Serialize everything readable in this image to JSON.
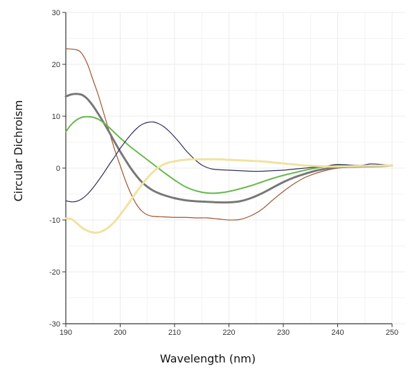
{
  "chart_data": {
    "type": "line",
    "title": "",
    "xlabel": "Wavelength (nm)",
    "ylabel": "Circular Dichroism",
    "xlim": [
      190,
      250
    ],
    "ylim": [
      -30,
      30
    ],
    "x_ticks": [
      190,
      200,
      210,
      220,
      230,
      240,
      250
    ],
    "y_ticks": [
      -30,
      -20,
      -10,
      0,
      10,
      20,
      30
    ],
    "grid": true,
    "legend": "none",
    "series": [
      {
        "color": "#a0522d",
        "width": 1.2,
        "x": [
          190,
          192,
          193,
          194,
          195,
          196,
          197,
          198,
          199,
          200,
          201,
          202,
          203,
          204,
          205,
          206,
          208,
          210,
          212,
          214,
          216,
          218,
          220,
          222,
          224,
          226,
          228,
          230,
          232,
          234,
          236,
          238,
          240,
          244,
          248,
          250
        ],
        "y": [
          23,
          22.8,
          22,
          20,
          17,
          14,
          10.5,
          7,
          3.5,
          0.5,
          -2.5,
          -5,
          -7,
          -8.3,
          -9,
          -9.3,
          -9.4,
          -9.5,
          -9.5,
          -9.6,
          -9.6,
          -9.8,
          -10,
          -9.9,
          -9.2,
          -8,
          -6.2,
          -4.5,
          -3,
          -1.8,
          -1,
          -0.4,
          0,
          0.3,
          0.5,
          0.6
        ]
      },
      {
        "color": "#777777",
        "width": 3,
        "x": [
          190,
          191,
          192,
          193,
          194,
          195,
          196,
          197,
          198,
          199,
          200,
          201,
          202,
          203,
          204,
          205,
          206,
          207,
          208,
          210,
          212,
          214,
          216,
          218,
          220,
          222,
          224,
          226,
          228,
          230,
          232,
          234,
          236,
          238,
          240,
          244,
          248,
          250
        ],
        "y": [
          13.8,
          14.2,
          14.3,
          14.1,
          13.3,
          12,
          10.4,
          8.7,
          6.9,
          5,
          3.2,
          1.5,
          -0.1,
          -1.5,
          -2.7,
          -3.6,
          -4.3,
          -4.8,
          -5.2,
          -5.8,
          -6.2,
          -6.4,
          -6.5,
          -6.6,
          -6.6,
          -6.4,
          -5.8,
          -4.9,
          -3.8,
          -2.7,
          -1.8,
          -1.1,
          -0.5,
          -0.1,
          0.2,
          0.3,
          0.4,
          0.5
        ]
      },
      {
        "color": "#66b84a",
        "width": 2,
        "x": [
          190,
          191,
          192,
          193,
          194,
          195,
          196,
          197,
          198,
          199,
          200,
          201,
          202,
          203,
          204,
          205,
          206,
          207,
          208,
          210,
          212,
          214,
          216,
          218,
          220,
          222,
          224,
          226,
          228,
          230,
          232,
          234,
          236,
          238,
          240,
          244,
          248,
          250
        ],
        "y": [
          7,
          8.4,
          9.3,
          9.8,
          9.9,
          9.8,
          9.4,
          8.7,
          7.8,
          6.8,
          5.8,
          4.9,
          4,
          3.2,
          2.4,
          1.6,
          0.8,
          0,
          -0.8,
          -2.3,
          -3.6,
          -4.4,
          -4.8,
          -4.8,
          -4.5,
          -4,
          -3.4,
          -2.7,
          -2,
          -1.4,
          -0.9,
          -0.4,
          0,
          0.3,
          0.5,
          0.5,
          0.4,
          0.5
        ]
      },
      {
        "color": "#2c2c5a",
        "width": 1.2,
        "x": [
          190,
          191,
          192,
          193,
          194,
          195,
          196,
          197,
          198,
          199,
          200,
          201,
          202,
          203,
          204,
          205,
          206,
          207,
          208,
          209,
          210,
          211,
          212,
          213,
          214,
          215,
          216,
          217,
          218,
          220,
          222,
          224,
          226,
          228,
          230,
          232,
          234,
          236,
          238,
          240,
          244,
          246,
          248,
          250
        ],
        "y": [
          -6.3,
          -6.5,
          -6.4,
          -5.9,
          -5,
          -3.8,
          -2.4,
          -0.9,
          0.7,
          2.2,
          3.8,
          5.2,
          6.5,
          7.6,
          8.4,
          8.8,
          8.9,
          8.6,
          8,
          7.1,
          6,
          4.8,
          3.5,
          2.4,
          1.4,
          0.6,
          0.1,
          -0.2,
          -0.3,
          -0.4,
          -0.5,
          -0.6,
          -0.6,
          -0.5,
          -0.4,
          -0.2,
          0,
          0.2,
          0.4,
          0.7,
          0.5,
          0.8,
          0.7,
          0.5
        ]
      },
      {
        "color": "#f0e2a0",
        "width": 3,
        "x": [
          190,
          191,
          192,
          193,
          194,
          195,
          196,
          197,
          198,
          199,
          200,
          201,
          202,
          203,
          204,
          205,
          206,
          207,
          208,
          209,
          210,
          211,
          212,
          213,
          214,
          215,
          216,
          217,
          218,
          220,
          222,
          224,
          226,
          228,
          230,
          232,
          234,
          236,
          238,
          240,
          244,
          248,
          250
        ],
        "y": [
          -9.7,
          -9.8,
          -10.6,
          -11.5,
          -12.1,
          -12.4,
          -12.4,
          -12,
          -11.3,
          -10.3,
          -9,
          -7.6,
          -6.1,
          -4.6,
          -3.2,
          -1.9,
          -0.8,
          0.1,
          0.7,
          1.1,
          1.3,
          1.5,
          1.6,
          1.7,
          1.7,
          1.7,
          1.7,
          1.7,
          1.7,
          1.6,
          1.5,
          1.4,
          1.3,
          1.1,
          0.9,
          0.7,
          0.5,
          0.4,
          0.3,
          0.3,
          0.4,
          0.5,
          0.5
        ]
      }
    ]
  }
}
